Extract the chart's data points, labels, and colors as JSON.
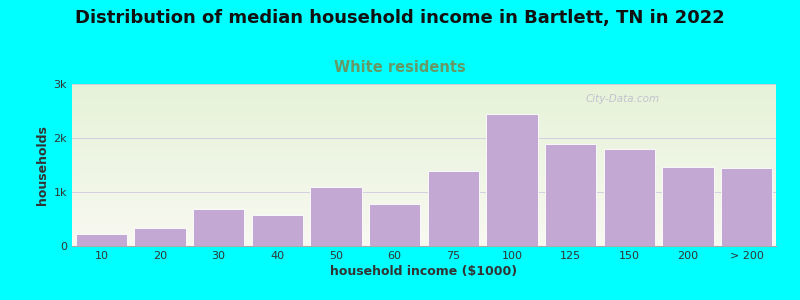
{
  "title": "Distribution of median household income in Bartlett, TN in 2022",
  "subtitle": "White residents",
  "xlabel": "household income ($1000)",
  "ylabel": "households",
  "background_color": "#00FFFF",
  "bar_color": "#C4A8D4",
  "bar_edge_color": "#FFFFFF",
  "categories": [
    "10",
    "20",
    "30",
    "40",
    "50",
    "60",
    "75",
    "100",
    "125",
    "150",
    "200",
    "> 200"
  ],
  "values": [
    220,
    330,
    680,
    580,
    1100,
    780,
    1380,
    2450,
    1880,
    1800,
    1470,
    1450
  ],
  "yticks": [
    0,
    1000,
    2000,
    3000
  ],
  "ytick_labels": [
    "0",
    "1k",
    "2k",
    "3k"
  ],
  "ylim": [
    0,
    3000
  ],
  "plot_bg_top": "#E5F2D8",
  "plot_bg_bottom": "#F8F8F0",
  "title_fontsize": 13,
  "subtitle_fontsize": 10.5,
  "subtitle_color": "#669966",
  "axis_label_fontsize": 9,
  "tick_fontsize": 8,
  "watermark_text": "City-Data.com",
  "watermark_color": "#BBBBCC",
  "watermark_fontsize": 7.5
}
